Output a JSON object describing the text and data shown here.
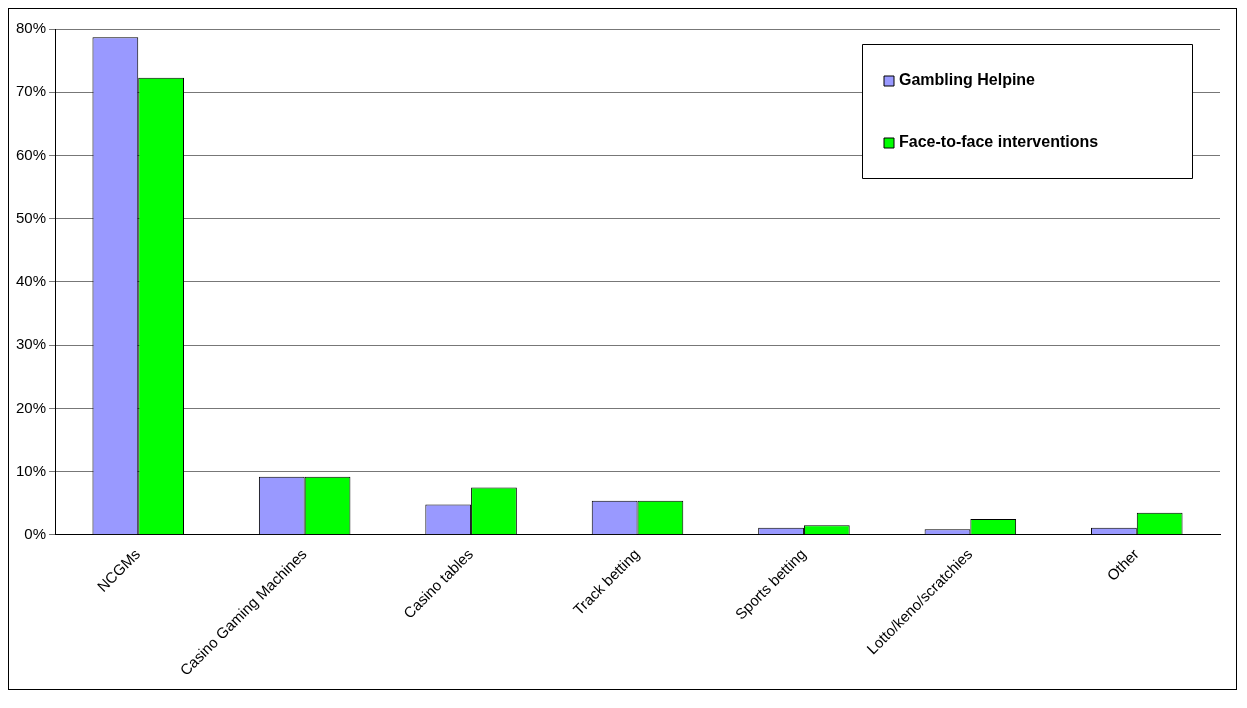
{
  "chart_data": {
    "type": "bar",
    "categories": [
      "NCGMs",
      "Casino Gaming Machines",
      "Casino tables",
      "Track betting",
      "Sports betting",
      "Lotto/keno/scratchies",
      "Other"
    ],
    "series": [
      {
        "name": "Gambling Helpine",
        "color": "#9999ff",
        "values": [
          78.7,
          9.2,
          4.8,
          5.4,
          1.1,
          0.9,
          1.1
        ]
      },
      {
        "name": "Face-to-face interventions",
        "color": "#00ff00",
        "values": [
          72.3,
          9.2,
          7.5,
          5.4,
          1.5,
          2.5,
          3.5
        ]
      }
    ],
    "ylim": [
      0,
      80
    ],
    "yticks": [
      {
        "value": 0,
        "label": "0%"
      },
      {
        "value": 10,
        "label": "10%"
      },
      {
        "value": 20,
        "label": "20%"
      },
      {
        "value": 30,
        "label": "30%"
      },
      {
        "value": 40,
        "label": "40%"
      },
      {
        "value": 50,
        "label": "50%"
      },
      {
        "value": 60,
        "label": "60%"
      },
      {
        "value": 70,
        "label": "70%"
      },
      {
        "value": 80,
        "label": "80%"
      }
    ],
    "grid": "y",
    "legend": "top right"
  }
}
